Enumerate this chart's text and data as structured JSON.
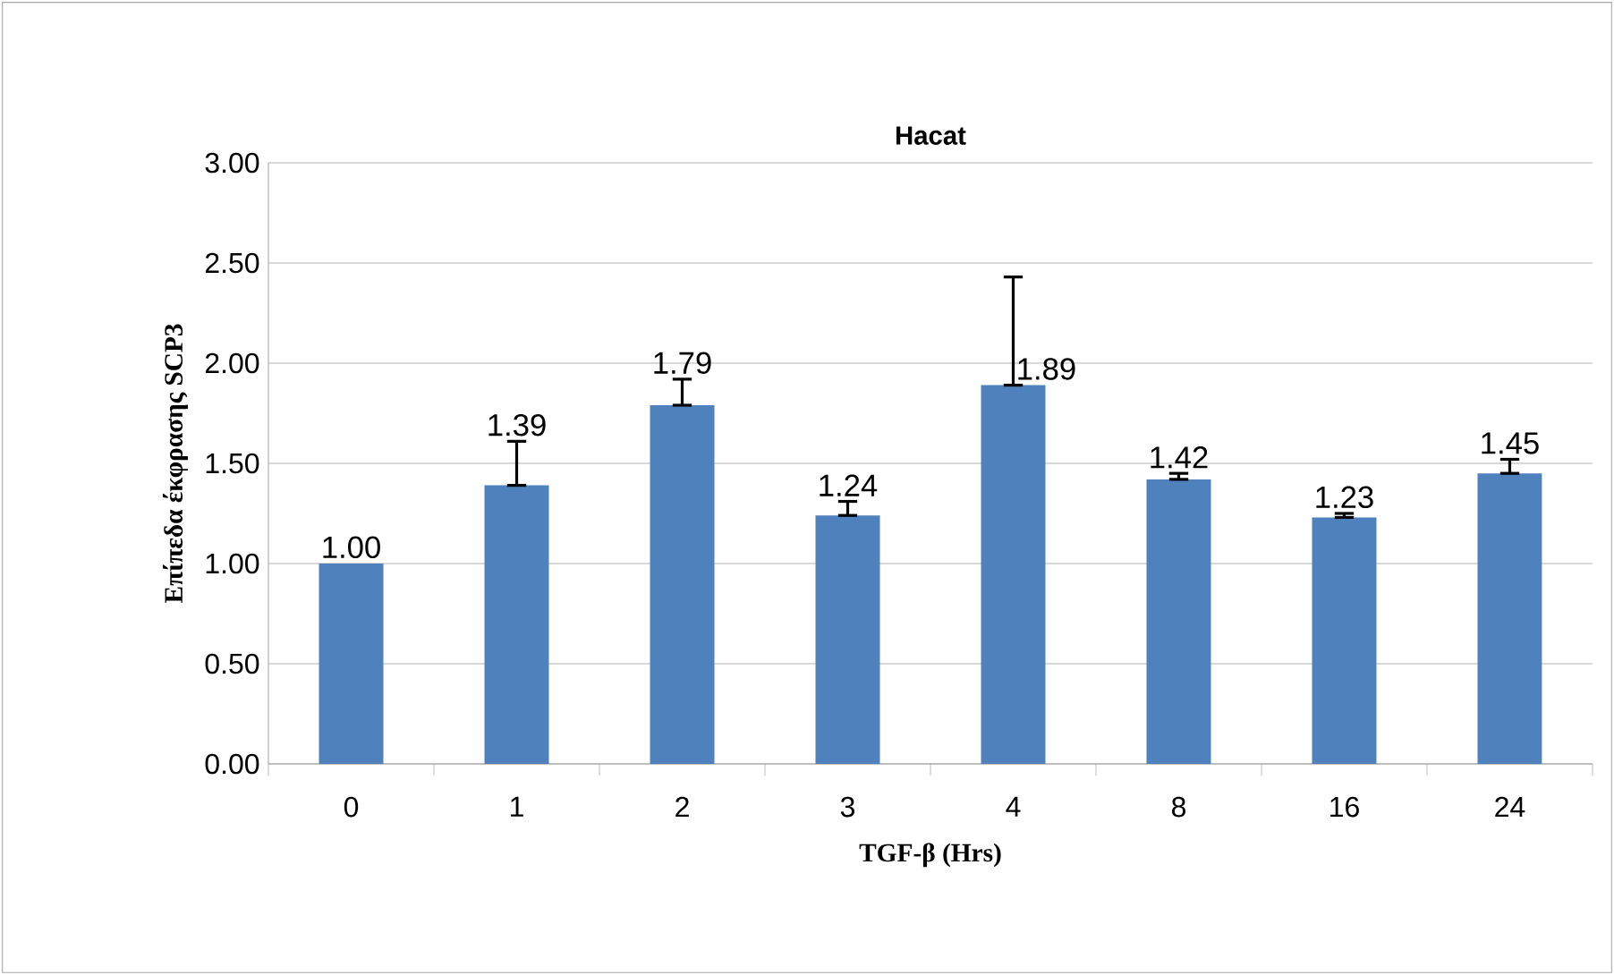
{
  "chart_data": {
    "type": "bar",
    "title": "Hacat",
    "xlabel": "TGF-β (Hrs)",
    "ylabel": "Επίπεδα έκφρασης SCP3",
    "categories": [
      "0",
      "1",
      "2",
      "3",
      "4",
      "8",
      "16",
      "24"
    ],
    "values": [
      1.0,
      1.39,
      1.79,
      1.24,
      1.89,
      1.42,
      1.23,
      1.45
    ],
    "value_labels": [
      "1.00",
      "1.39",
      "1.79",
      "1.24",
      "1.89",
      "1.42",
      "1.23",
      "1.45"
    ],
    "errors": [
      null,
      [
        1.39,
        1.61
      ],
      [
        1.79,
        1.92
      ],
      [
        1.24,
        1.31
      ],
      [
        1.89,
        2.43
      ],
      [
        1.42,
        1.45
      ],
      [
        1.23,
        1.25
      ],
      [
        1.45,
        1.52
      ]
    ],
    "color": "#4f81bd",
    "ylim": [
      0,
      3
    ],
    "yticks": [
      {
        "value": 0,
        "label": "0.00"
      },
      {
        "value": 0.5,
        "label": "0.50"
      },
      {
        "value": 1,
        "label": "1.00"
      },
      {
        "value": 1.5,
        "label": "1.50"
      },
      {
        "value": 2,
        "label": "2.00"
      },
      {
        "value": 2.5,
        "label": "2.50"
      },
      {
        "value": 3,
        "label": "3.00"
      }
    ],
    "grid": "y"
  }
}
